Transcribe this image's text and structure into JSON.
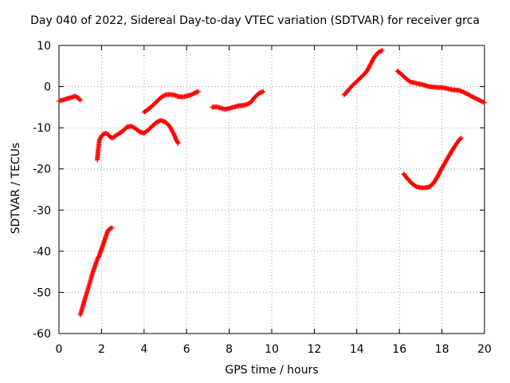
{
  "chart_data": {
    "type": "scatter",
    "title": "Day 040 of 2022, Sidereal Day-to-day VTEC variation (SDTVAR) for receiver grca",
    "xlabel": "GPS time / hours",
    "ylabel": "SDTVAR / TECUs",
    "xlim": [
      0,
      20
    ],
    "ylim": [
      -60,
      10
    ],
    "xticks": [
      0,
      2,
      4,
      6,
      8,
      10,
      12,
      14,
      16,
      18,
      20
    ],
    "yticks": [
      -60,
      -50,
      -40,
      -30,
      -20,
      -10,
      0,
      10
    ],
    "grid": true,
    "marker": "plus",
    "color": "#ff0000",
    "segments": [
      {
        "x": [
          0.0,
          0.2,
          0.4,
          0.6,
          0.75,
          0.9,
          1.0
        ],
        "y": [
          -3.5,
          -3.2,
          -2.9,
          -2.6,
          -2.3,
          -2.7,
          -3.3
        ]
      },
      {
        "x": [
          1.0,
          1.2,
          1.4,
          1.6,
          1.8,
          1.9,
          2.0,
          2.1,
          2.2,
          2.3,
          2.4,
          2.5
        ],
        "y": [
          -55.5,
          -52,
          -48.5,
          -45,
          -42,
          -41,
          -39.5,
          -38,
          -36.5,
          -35,
          -34.5,
          -34.3
        ]
      },
      {
        "x": [
          1.8,
          1.85,
          1.9,
          2.0,
          2.1,
          2.2,
          2.3,
          2.4,
          2.5,
          2.6,
          2.7,
          2.8,
          3.0,
          3.2,
          3.4,
          3.6,
          3.8,
          4.0,
          4.2,
          4.4,
          4.6,
          4.8,
          5.0,
          5.2,
          5.4,
          5.5,
          5.6
        ],
        "y": [
          -17.8,
          -15,
          -13,
          -12,
          -11.5,
          -11.3,
          -11.6,
          -12.2,
          -12.5,
          -12.2,
          -11.8,
          -11.5,
          -10.8,
          -9.8,
          -9.6,
          -10.2,
          -11,
          -11.3,
          -10.5,
          -9.5,
          -8.6,
          -8.2,
          -8.6,
          -9.6,
          -11.5,
          -12.8,
          -13.8
        ]
      },
      {
        "x": [
          4.0,
          4.2,
          4.4,
          4.6,
          4.8,
          5.0,
          5.2,
          5.4,
          5.6,
          5.8,
          6.0,
          6.2,
          6.4,
          6.55
        ],
        "y": [
          -6.2,
          -5.5,
          -4.6,
          -3.6,
          -2.6,
          -2.0,
          -1.9,
          -2.0,
          -2.4,
          -2.5,
          -2.3,
          -2.0,
          -1.5,
          -1.2
        ]
      },
      {
        "x": [
          7.2,
          7.4,
          7.6,
          7.8,
          8.0,
          8.2,
          8.4,
          8.6,
          8.8,
          9.0,
          9.2,
          9.4,
          9.6
        ],
        "y": [
          -5.0,
          -4.9,
          -5.2,
          -5.5,
          -5.3,
          -5.0,
          -4.7,
          -4.6,
          -4.4,
          -3.9,
          -2.6,
          -1.6,
          -1.2
        ]
      },
      {
        "x": [
          13.4,
          13.5,
          13.6,
          13.8,
          14.0,
          14.2,
          14.4,
          14.5,
          14.6,
          14.8,
          15.0,
          15.2
        ],
        "y": [
          -2.0,
          -1.5,
          -0.8,
          0.3,
          1.3,
          2.3,
          3.3,
          4.0,
          5.0,
          7.0,
          8.3,
          8.8
        ]
      },
      {
        "x": [
          15.9,
          16.1,
          16.3,
          16.5,
          16.8,
          17.0,
          17.2,
          17.4,
          17.6,
          17.8,
          18.0,
          18.2,
          18.4,
          18.6,
          18.8,
          19.0,
          19.2,
          19.4,
          19.6,
          19.8,
          20.0
        ],
        "y": [
          3.8,
          3.0,
          2.0,
          1.2,
          0.8,
          0.6,
          0.3,
          0.0,
          -0.1,
          -0.2,
          -0.2,
          -0.4,
          -0.7,
          -0.8,
          -0.9,
          -1.3,
          -1.8,
          -2.4,
          -2.9,
          -3.4,
          -3.9
        ]
      },
      {
        "x": [
          16.2,
          16.4,
          16.6,
          16.8,
          17.0,
          17.2,
          17.4,
          17.6,
          17.8,
          18.0,
          18.2,
          18.4,
          18.6,
          18.8,
          18.9
        ],
        "y": [
          -21.2,
          -22.5,
          -23.6,
          -24.3,
          -24.6,
          -24.6,
          -24.4,
          -23.5,
          -21.8,
          -19.8,
          -18.0,
          -16.2,
          -14.5,
          -13.0,
          -12.5
        ]
      }
    ]
  }
}
